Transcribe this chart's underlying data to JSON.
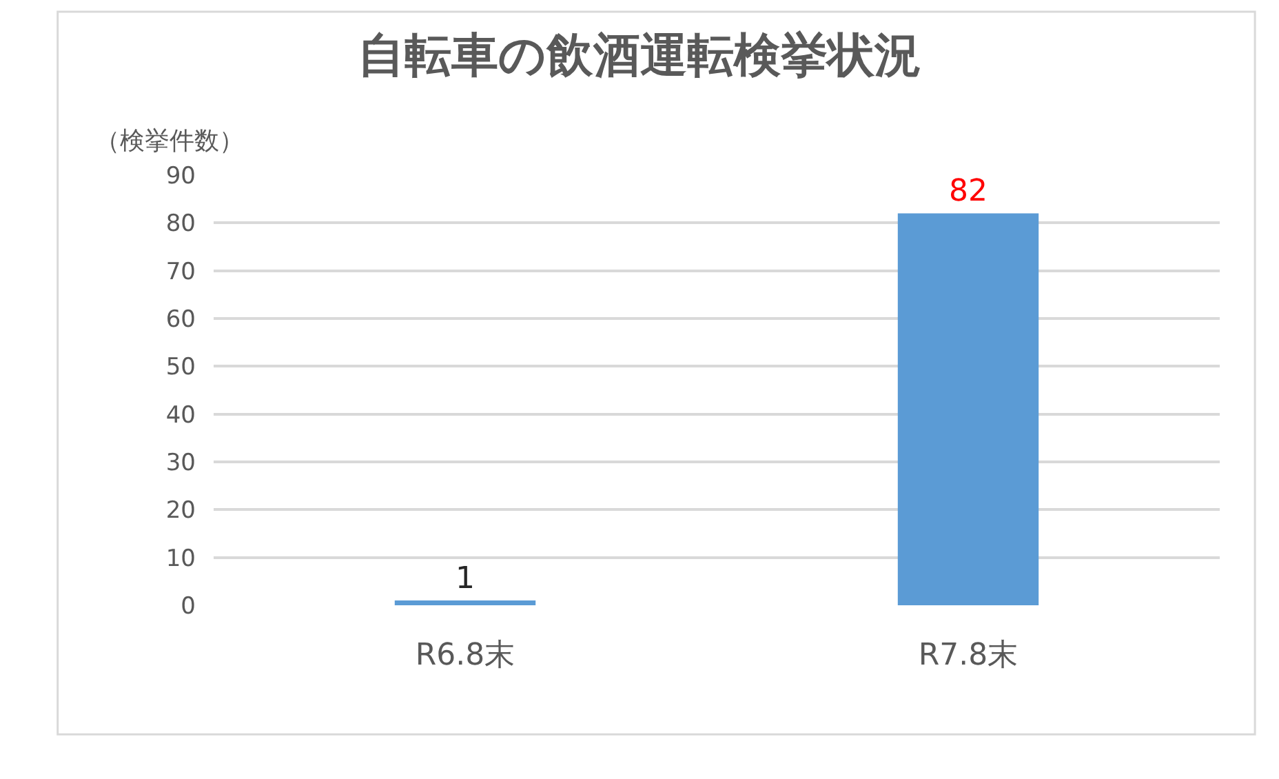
{
  "chart_data": {
    "type": "bar",
    "title": "自転車の飲酒運転検挙状況",
    "ylabel": "（検挙件数）",
    "categories": [
      "R6.8末",
      "R7.8末"
    ],
    "values": [
      1,
      82
    ],
    "color": "#5b9bd5",
    "ylim": [
      0,
      90
    ],
    "yticks": [
      0,
      10,
      20,
      30,
      40,
      50,
      60,
      70,
      80,
      90
    ],
    "grid": "y",
    "data_labels": true,
    "legend": false
  }
}
